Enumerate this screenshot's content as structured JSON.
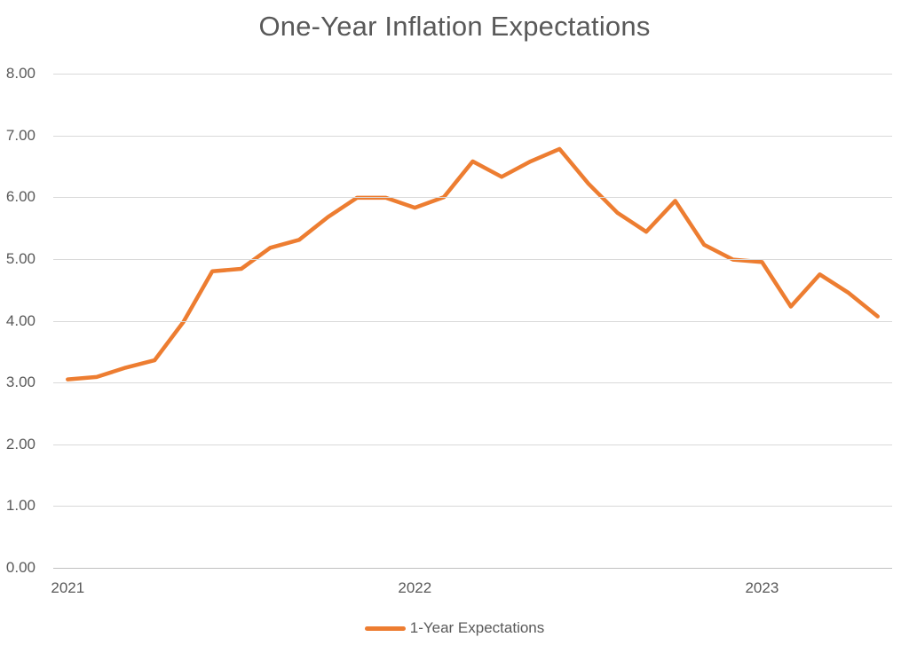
{
  "chart_data": {
    "type": "line",
    "title": "One-Year Inflation Expectations",
    "xlabel": "",
    "ylabel": "",
    "ylim": [
      0,
      8
    ],
    "ytick_step": 1,
    "grid": true,
    "legend_position": "bottom-center",
    "x": [
      "Jan 2021",
      "Feb 2021",
      "Mar 2021",
      "Apr 2021",
      "May 2021",
      "Jun 2021",
      "Jul 2021",
      "Aug 2021",
      "Sep 2021",
      "Oct 2021",
      "Nov 2021",
      "Dec 2021",
      "Jan 2022",
      "Feb 2022",
      "Mar 2022",
      "Apr 2022",
      "May 2022",
      "Jun 2022",
      "Jul 2022",
      "Aug 2022",
      "Sep 2022",
      "Oct 2022",
      "Nov 2022",
      "Dec 2022",
      "Jan 2023",
      "Feb 2023",
      "Mar 2023",
      "Apr 2023",
      "May 2023"
    ],
    "x_tick_labels": [
      "2021",
      "2022",
      "2023"
    ],
    "y_tick_labels": [
      "0.00",
      "1.00",
      "2.00",
      "3.00",
      "4.00",
      "5.00",
      "6.00",
      "7.00",
      "8.00"
    ],
    "series": [
      {
        "name": "1-Year Expectations",
        "color": "#ED7D31",
        "values": [
          3.05,
          3.09,
          3.24,
          3.36,
          3.98,
          4.8,
          4.84,
          5.18,
          5.31,
          5.68,
          5.99,
          5.99,
          5.83,
          6.0,
          6.58,
          6.33,
          6.58,
          6.78,
          6.22,
          5.75,
          5.44,
          5.94,
          5.23,
          4.99,
          4.95,
          4.23,
          4.75,
          4.45,
          4.07
        ]
      }
    ]
  },
  "colors": {
    "title_text": "#595959",
    "axis_text": "#595959",
    "gridline": "#D9D9D9",
    "axis_line": "#BFBFBF",
    "background": "#FFFFFF",
    "series_line": "#ED7D31"
  }
}
